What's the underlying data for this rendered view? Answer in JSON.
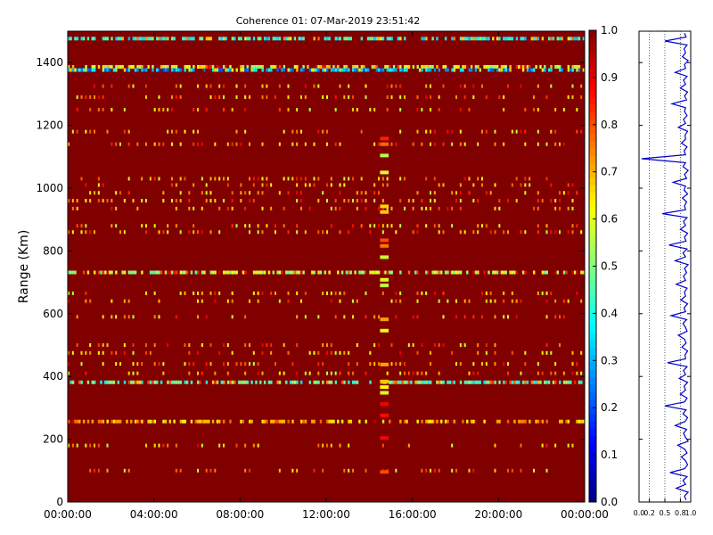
{
  "chart_data": [
    {
      "type": "heatmap",
      "title": "Coherence 01: 07-Mar-2019 23:51:42",
      "ylabel": "Range (Km)",
      "xlabel": "",
      "xlim": [
        0,
        24
      ],
      "ylim": [
        0,
        1500
      ],
      "x_ticks": [
        {
          "value": 0,
          "label": "00:00:00"
        },
        {
          "value": 4,
          "label": "04:00:00"
        },
        {
          "value": 8,
          "label": "08:00:00"
        },
        {
          "value": 12,
          "label": "12:00:00"
        },
        {
          "value": 16,
          "label": "16:00:00"
        },
        {
          "value": 20,
          "label": "20:00:00"
        },
        {
          "value": 24,
          "label": "00:00:00"
        }
      ],
      "y_ticks": [
        {
          "value": 0,
          "label": "0"
        },
        {
          "value": 200,
          "label": "200"
        },
        {
          "value": 400,
          "label": "400"
        },
        {
          "value": 600,
          "label": "600"
        },
        {
          "value": 800,
          "label": "800"
        },
        {
          "value": 1000,
          "label": "1000"
        },
        {
          "value": 1200,
          "label": "1200"
        },
        {
          "value": 1400,
          "label": "1400"
        }
      ],
      "background_value": 1.0,
      "colormap": "jet",
      "colorbar": {
        "range": [
          0,
          1
        ],
        "ticks": [
          {
            "value": 0.0,
            "label": "0.0"
          },
          {
            "value": 0.1,
            "label": "0.1"
          },
          {
            "value": 0.2,
            "label": "0.2"
          },
          {
            "value": 0.3,
            "label": "0.3"
          },
          {
            "value": 0.4,
            "label": "0.4"
          },
          {
            "value": 0.5,
            "label": "0.5"
          },
          {
            "value": 0.6,
            "label": "0.6"
          },
          {
            "value": 0.7,
            "label": "0.7"
          },
          {
            "value": 0.8,
            "label": "0.8"
          },
          {
            "value": 0.9,
            "label": "0.9"
          },
          {
            "value": 1.0,
            "label": "1.0"
          }
        ]
      },
      "dense_bands": [
        {
          "range_km": 1475,
          "coherence": [
            0.3,
            0.5
          ]
        },
        {
          "range_km": 1385,
          "coherence": [
            0.5,
            0.7
          ]
        },
        {
          "range_km": 1375,
          "coherence": [
            0.2,
            0.4
          ]
        },
        {
          "range_km": 730,
          "coherence": [
            0.45,
            0.65
          ]
        },
        {
          "range_km": 380,
          "coherence": [
            0.35,
            0.55
          ]
        },
        {
          "range_km": 255,
          "coherence": [
            0.6,
            0.8
          ]
        }
      ],
      "sparse_rows_km": [
        1325,
        1290,
        1250,
        1180,
        1140,
        1030,
        1010,
        985,
        960,
        935,
        880,
        860,
        665,
        640,
        590,
        500,
        475,
        440,
        410,
        180,
        100
      ],
      "gap_column_hours": [
        14.5,
        14.9
      ]
    },
    {
      "type": "line",
      "title": "",
      "x_ticks": [
        {
          "value": 0.0,
          "label": "0.0"
        },
        {
          "value": 0.2,
          "label": "0.2"
        },
        {
          "value": 0.5,
          "label": "0.5"
        },
        {
          "value": 0.8,
          "label": "0.8"
        },
        {
          "value": 1.0,
          "label": "1.0"
        }
      ],
      "xlim": [
        0,
        1
      ],
      "ylim": [
        0,
        1500
      ],
      "series_color": "#0000cc",
      "series": [
        {
          "x": [
            0.91,
            0.88,
            0.95,
            0.72,
            0.9,
            0.85,
            0.93,
            0.6,
            0.88,
            0.94,
            0.9,
            0.82,
            0.93,
            0.88,
            0.75,
            0.95,
            0.9,
            0.86,
            0.92,
            0.7,
            0.89,
            0.94,
            0.85,
            0.91,
            0.5,
            0.88,
            0.93,
            0.8,
            0.9,
            0.87,
            0.94,
            0.78,
            0.9,
            0.86,
            0.93,
            0.55,
            0.9,
            0.89,
            0.94,
            0.83,
            0.91,
            0.88,
            0.76,
            0.93,
            0.9,
            0.85,
            0.92,
            0.62,
            0.9,
            0.87,
            0.94,
            0.81,
            0.9,
            0.88,
            0.93,
            0.72,
            0.9,
            0.86,
            0.92,
            0.88,
            0.95,
            0.7,
            0.9,
            0.85,
            0.93,
            0.58,
            0.91,
            0.88,
            0.94,
            0.8,
            0.9,
            0.86,
            0.93,
            0.45,
            0.9,
            0.88,
            0.92,
            0.84,
            0.94,
            0.87,
            0.9,
            0.66,
            0.92,
            0.88,
            0.95,
            0.85,
            0.9,
            0.05,
            0.9,
            0.87,
            0.93,
            0.82,
            0.9,
            0.89,
            0.94,
            0.76,
            0.9,
            0.86,
            0.93,
            0.88,
            0.9,
            0.64,
            0.92,
            0.88,
            0.94,
            0.8,
            0.9,
            0.86,
            0.93,
            0.7,
            0.9,
            0.88,
            0.95,
            0.84,
            0.9,
            0.87,
            0.93,
            0.5,
            0.91,
            0.88
          ],
          "y_range": [
            0,
            1500
          ]
        }
      ]
    }
  ]
}
